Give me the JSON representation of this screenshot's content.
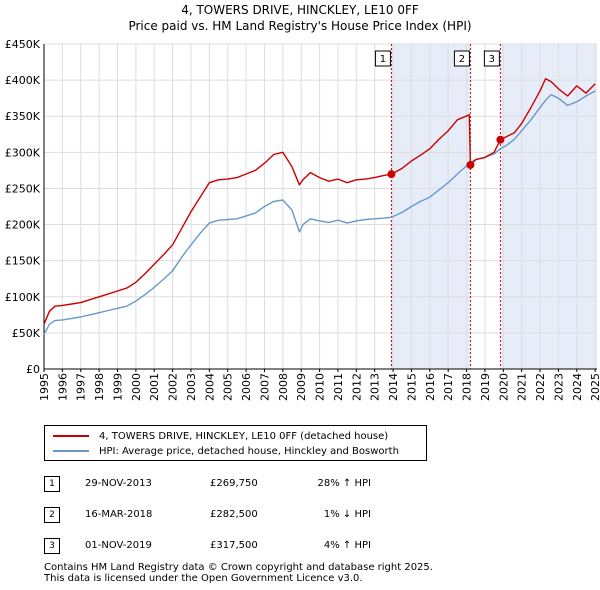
{
  "title": "4, TOWERS DRIVE, HINCKLEY, LE10 0FF",
  "subtitle": "Price paid vs. HM Land Registry's House Price Index (HPI)",
  "colors": {
    "property": "#cc0000",
    "hpi": "#6699cc",
    "shade": "#dde5f5",
    "vline": "#cc0000"
  },
  "chart_data": {
    "type": "line",
    "ylim": [
      0,
      450000
    ],
    "xlim": [
      1995,
      2025.1
    ],
    "y_ticks": [
      {
        "value": 0,
        "label": "£0"
      },
      {
        "value": 50000,
        "label": "£50K"
      },
      {
        "value": 100000,
        "label": "£100K"
      },
      {
        "value": 150000,
        "label": "£150K"
      },
      {
        "value": 200000,
        "label": "£200K"
      },
      {
        "value": 250000,
        "label": "£250K"
      },
      {
        "value": 300000,
        "label": "£300K"
      },
      {
        "value": 350000,
        "label": "£350K"
      },
      {
        "value": 400000,
        "label": "£400K"
      },
      {
        "value": 450000,
        "label": "£450K"
      }
    ],
    "x_ticks": [
      "1995",
      "1996",
      "1997",
      "1998",
      "1999",
      "2000",
      "2001",
      "2002",
      "2003",
      "2004",
      "2005",
      "2006",
      "2007",
      "2008",
      "2009",
      "2010",
      "2011",
      "2012",
      "2013",
      "2014",
      "2015",
      "2016",
      "2017",
      "2018",
      "2019",
      "2020",
      "2021",
      "2022",
      "2023",
      "2024",
      "2025"
    ],
    "series": [
      {
        "name": "4, TOWERS DRIVE, HINCKLEY, LE10 0FF (detached house)",
        "color": "#cc0000",
        "x": [
          1995.0,
          1995.3,
          1995.6,
          1996,
          1996.5,
          1997,
          1997.5,
          1998,
          1998.5,
          1999,
          1999.5,
          2000,
          2000.5,
          2001,
          2001.5,
          2002,
          2002.5,
          2003,
          2003.5,
          2004,
          2004.5,
          2005,
          2005.5,
          2006,
          2006.5,
          2007,
          2007.5,
          2008,
          2008.5,
          2008.9,
          2009.1,
          2009.5,
          2010,
          2010.5,
          2011,
          2011.5,
          2012,
          2012.5,
          2013,
          2013.5,
          2013.91,
          2014.5,
          2015,
          2015.5,
          2016,
          2016.5,
          2017,
          2017.5,
          2018.15,
          2018.21,
          2018.5,
          2019,
          2019.5,
          2019.84,
          2020.2,
          2020.6,
          2021,
          2021.5,
          2022,
          2022.3,
          2022.6,
          2023,
          2023.5,
          2024,
          2024.5,
          2025
        ],
        "values": [
          62000,
          80000,
          87000,
          88000,
          90000,
          92000,
          96000,
          100000,
          104000,
          108000,
          112000,
          120000,
          132000,
          145000,
          158000,
          172000,
          195000,
          218000,
          238000,
          258000,
          262000,
          263000,
          265000,
          270000,
          275000,
          285000,
          297000,
          300000,
          280000,
          255000,
          262000,
          272000,
          265000,
          260000,
          263000,
          258000,
          262000,
          263000,
          265000,
          268000,
          269750,
          278000,
          288000,
          296000,
          305000,
          318000,
          330000,
          345000,
          352000,
          282500,
          290000,
          293000,
          300000,
          317500,
          322000,
          327000,
          340000,
          362000,
          385000,
          402000,
          398000,
          388000,
          378000,
          392000,
          382000,
          395000
        ]
      },
      {
        "name": "HPI: Average price, detached house, Hinckley and Bosworth",
        "color": "#6699cc",
        "x": [
          1995.0,
          1995.3,
          1995.6,
          1996,
          1996.5,
          1997,
          1997.5,
          1998,
          1998.5,
          1999,
          1999.5,
          2000,
          2000.5,
          2001,
          2001.5,
          2002,
          2002.5,
          2003,
          2003.5,
          2004,
          2004.5,
          2005,
          2005.5,
          2006,
          2006.5,
          2007,
          2007.5,
          2008,
          2008.5,
          2008.9,
          2009.1,
          2009.5,
          2010,
          2010.5,
          2011,
          2011.5,
          2012,
          2012.5,
          2013,
          2013.5,
          2013.91,
          2014.5,
          2015,
          2015.5,
          2016,
          2016.5,
          2017,
          2017.5,
          2018.21,
          2018.5,
          2019,
          2019.5,
          2019.84,
          2020.2,
          2020.6,
          2021,
          2021.5,
          2022,
          2022.3,
          2022.6,
          2023,
          2023.5,
          2024,
          2024.5,
          2025
        ],
        "values": [
          48000,
          62000,
          67000,
          68000,
          70000,
          72000,
          75000,
          78000,
          81000,
          84000,
          87000,
          94000,
          103000,
          113000,
          124000,
          136000,
          155000,
          172000,
          188000,
          202000,
          206000,
          207000,
          208000,
          212000,
          216000,
          225000,
          232000,
          234000,
          220000,
          190000,
          200000,
          208000,
          205000,
          203000,
          206000,
          202000,
          205000,
          207000,
          208000,
          209000,
          210000,
          217000,
          225000,
          232000,
          238000,
          248000,
          258000,
          270000,
          286000,
          290000,
          293000,
          298000,
          305000,
          310000,
          318000,
          330000,
          345000,
          362000,
          372000,
          380000,
          375000,
          365000,
          370000,
          378000,
          385000
        ]
      }
    ],
    "sales": [
      {
        "marker": "1",
        "x": 2013.91,
        "value": 269750
      },
      {
        "marker": "2",
        "x": 2018.21,
        "value": 282500
      },
      {
        "marker": "3",
        "x": 2019.84,
        "value": 317500
      }
    ],
    "shaded_spans": [
      [
        2013.91,
        2018.21
      ],
      [
        2019.84,
        2025.1
      ]
    ]
  },
  "legend": {
    "property_label": "4, TOWERS DRIVE, HINCKLEY, LE10 0FF (detached house)",
    "hpi_label": "HPI: Average price, detached house, Hinckley and Bosworth"
  },
  "sales_table": [
    {
      "num": "1",
      "date": "29-NOV-2013",
      "price": "£269,750",
      "hpi": "28% ↑ HPI"
    },
    {
      "num": "2",
      "date": "16-MAR-2018",
      "price": "£282,500",
      "hpi": "1% ↓ HPI"
    },
    {
      "num": "3",
      "date": "01-NOV-2019",
      "price": "£317,500",
      "hpi": "4% ↑ HPI"
    }
  ],
  "footer": {
    "line1": "Contains HM Land Registry data © Crown copyright and database right 2025.",
    "line2": "This data is licensed under the Open Government Licence v3.0."
  }
}
